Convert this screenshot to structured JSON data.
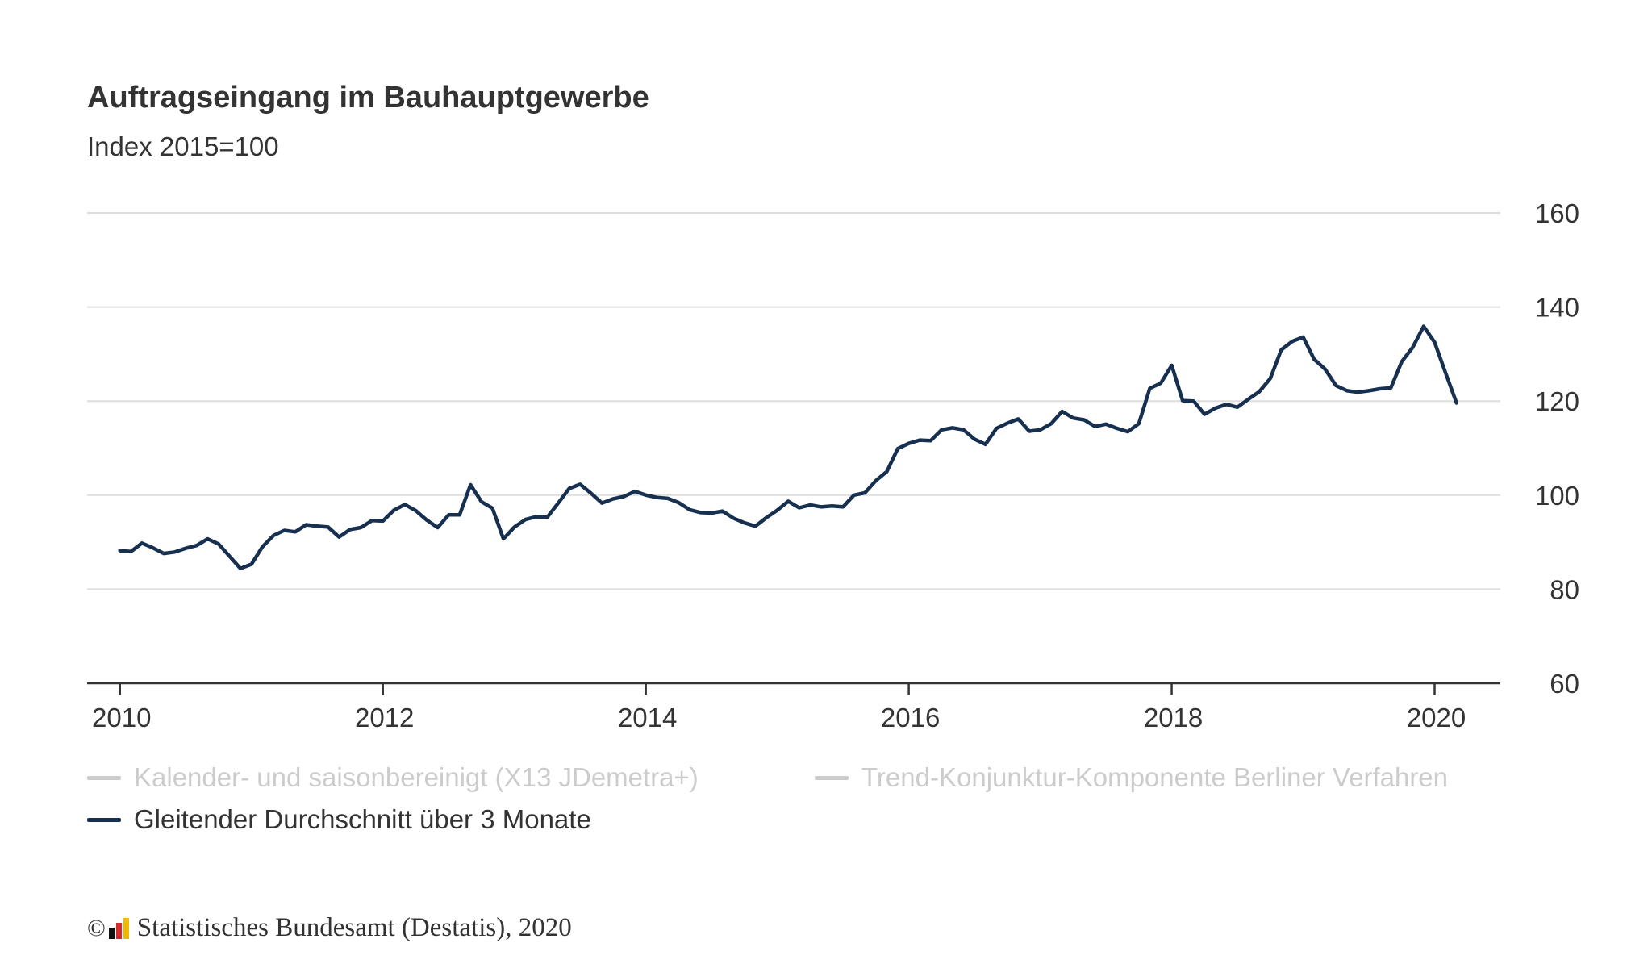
{
  "title": "Auftragseingang im Bauhauptgewerbe",
  "subtitle": "Index 2015=100",
  "footer": {
    "copyright_symbol": "©",
    "source": "Statistisches Bundesamt (Destatis), 2020"
  },
  "colors": {
    "series_active": "#17304f",
    "series_inactive": "#cccccc",
    "grid": "#dddddd",
    "axis": "#333333",
    "logo_black": "#111111",
    "logo_red": "#d62a2a",
    "logo_gold": "#f2b800"
  },
  "legend": [
    {
      "label": "Kalender- und saisonbereinigt (X13 JDemetra+)",
      "active": false
    },
    {
      "label": "Trend-Konjunktur-Komponente Berliner Verfahren",
      "active": false
    },
    {
      "label": "Gleitender Durchschnitt über 3 Monate",
      "active": true
    }
  ],
  "chart_data": {
    "type": "line",
    "x_start": "2010-01",
    "x_frequency": "monthly",
    "xlim": [
      "2009-10",
      "2020-07"
    ],
    "ylim": [
      60,
      160
    ],
    "y_ticks": [
      60,
      80,
      100,
      120,
      140,
      160
    ],
    "x_ticks": [
      "2010",
      "2012",
      "2014",
      "2016",
      "2018",
      "2020"
    ],
    "grid": true,
    "legend_position": "bottom-left",
    "series": [
      {
        "name": "Gleitender Durchschnitt über 3 Monate",
        "visible": true,
        "values": [
          88.2,
          88.0,
          89.8,
          88.8,
          87.6,
          87.9,
          88.7,
          89.3,
          90.7,
          89.6,
          87.0,
          84.4,
          85.3,
          89.0,
          91.4,
          92.5,
          92.2,
          93.7,
          93.4,
          93.2,
          91.1,
          92.7,
          93.1,
          94.6,
          94.5,
          96.8,
          98.0,
          96.7,
          94.7,
          93.1,
          95.8,
          95.8,
          102.2,
          98.6,
          97.2,
          90.7,
          93.2,
          94.8,
          95.4,
          95.3,
          98.3,
          101.4,
          102.3,
          100.4,
          98.3,
          99.2,
          99.7,
          100.8,
          100.0,
          99.5,
          99.3,
          98.4,
          96.9,
          96.3,
          96.2,
          96.6,
          95.1,
          94.1,
          93.4,
          95.2,
          96.8,
          98.7,
          97.3,
          97.9,
          97.5,
          97.7,
          97.5,
          100.0,
          100.5,
          103.1,
          105.0,
          109.9,
          111.0,
          111.7,
          111.6,
          113.9,
          114.3,
          113.9,
          111.9,
          110.8,
          114.2,
          115.3,
          116.2,
          113.6,
          113.9,
          115.2,
          117.8,
          116.4,
          116.0,
          114.6,
          115.1,
          114.2,
          113.5,
          115.2,
          122.7,
          123.8,
          127.6,
          120.1,
          120.0,
          117.2,
          118.5,
          119.3,
          118.7,
          120.4,
          122.0,
          124.8,
          130.9,
          132.7,
          133.6,
          128.9,
          126.8,
          123.3,
          122.2,
          121.9,
          122.2,
          122.6,
          122.8,
          128.4,
          131.4,
          135.9,
          132.5,
          126.0,
          119.6
        ]
      }
    ]
  }
}
